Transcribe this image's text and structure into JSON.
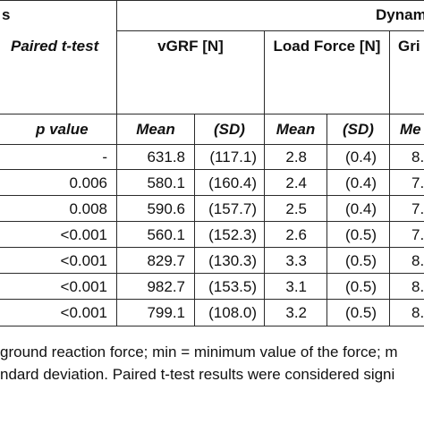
{
  "table": {
    "header_row1": {
      "left_fragment": "s",
      "right_fragment": "Dynam"
    },
    "header_row2": {
      "paired_ttest": "Paired t-test",
      "vgrf": "vGRF [N]",
      "load_force": "Load Force [N]",
      "grip_fragment": "Gri"
    },
    "header_row3": {
      "p_value": "p value",
      "mean": "Mean",
      "sd": "(SD)",
      "mean2": "Mean",
      "sd2": "(SD)",
      "me_fragment": "Me"
    },
    "rows": [
      {
        "p": "-",
        "vgrf_mean": "631.8",
        "vgrf_sd": "(117.1)",
        "lf_mean": "2.8",
        "lf_sd": "(0.4)",
        "grip_fragment": "8."
      },
      {
        "p": "0.006",
        "vgrf_mean": "580.1",
        "vgrf_sd": "(160.4)",
        "lf_mean": "2.4",
        "lf_sd": "(0.4)",
        "grip_fragment": "7."
      },
      {
        "p": "0.008",
        "vgrf_mean": "590.6",
        "vgrf_sd": "(157.7)",
        "lf_mean": "2.5",
        "lf_sd": "(0.4)",
        "grip_fragment": "7."
      },
      {
        "p": "<0.001",
        "vgrf_mean": "560.1",
        "vgrf_sd": "(152.3)",
        "lf_mean": "2.6",
        "lf_sd": "(0.5)",
        "grip_fragment": "7."
      },
      {
        "p": "<0.001",
        "vgrf_mean": "829.7",
        "vgrf_sd": "(130.3)",
        "lf_mean": "3.3",
        "lf_sd": "(0.5)",
        "grip_fragment": "8."
      },
      {
        "p": "<0.001",
        "vgrf_mean": "982.7",
        "vgrf_sd": "(153.5)",
        "lf_mean": "3.1",
        "lf_sd": "(0.5)",
        "grip_fragment": "8."
      },
      {
        "p": "<0.001",
        "vgrf_mean": "799.1",
        "vgrf_sd": "(108.0)",
        "lf_mean": "3.2",
        "lf_sd": "(0.5)",
        "grip_fragment": "8."
      }
    ]
  },
  "footnote": {
    "line1": "ground reaction force; min = minimum value of the force; m",
    "line2": "ndard deviation. Paired t-test results were considered signi"
  }
}
